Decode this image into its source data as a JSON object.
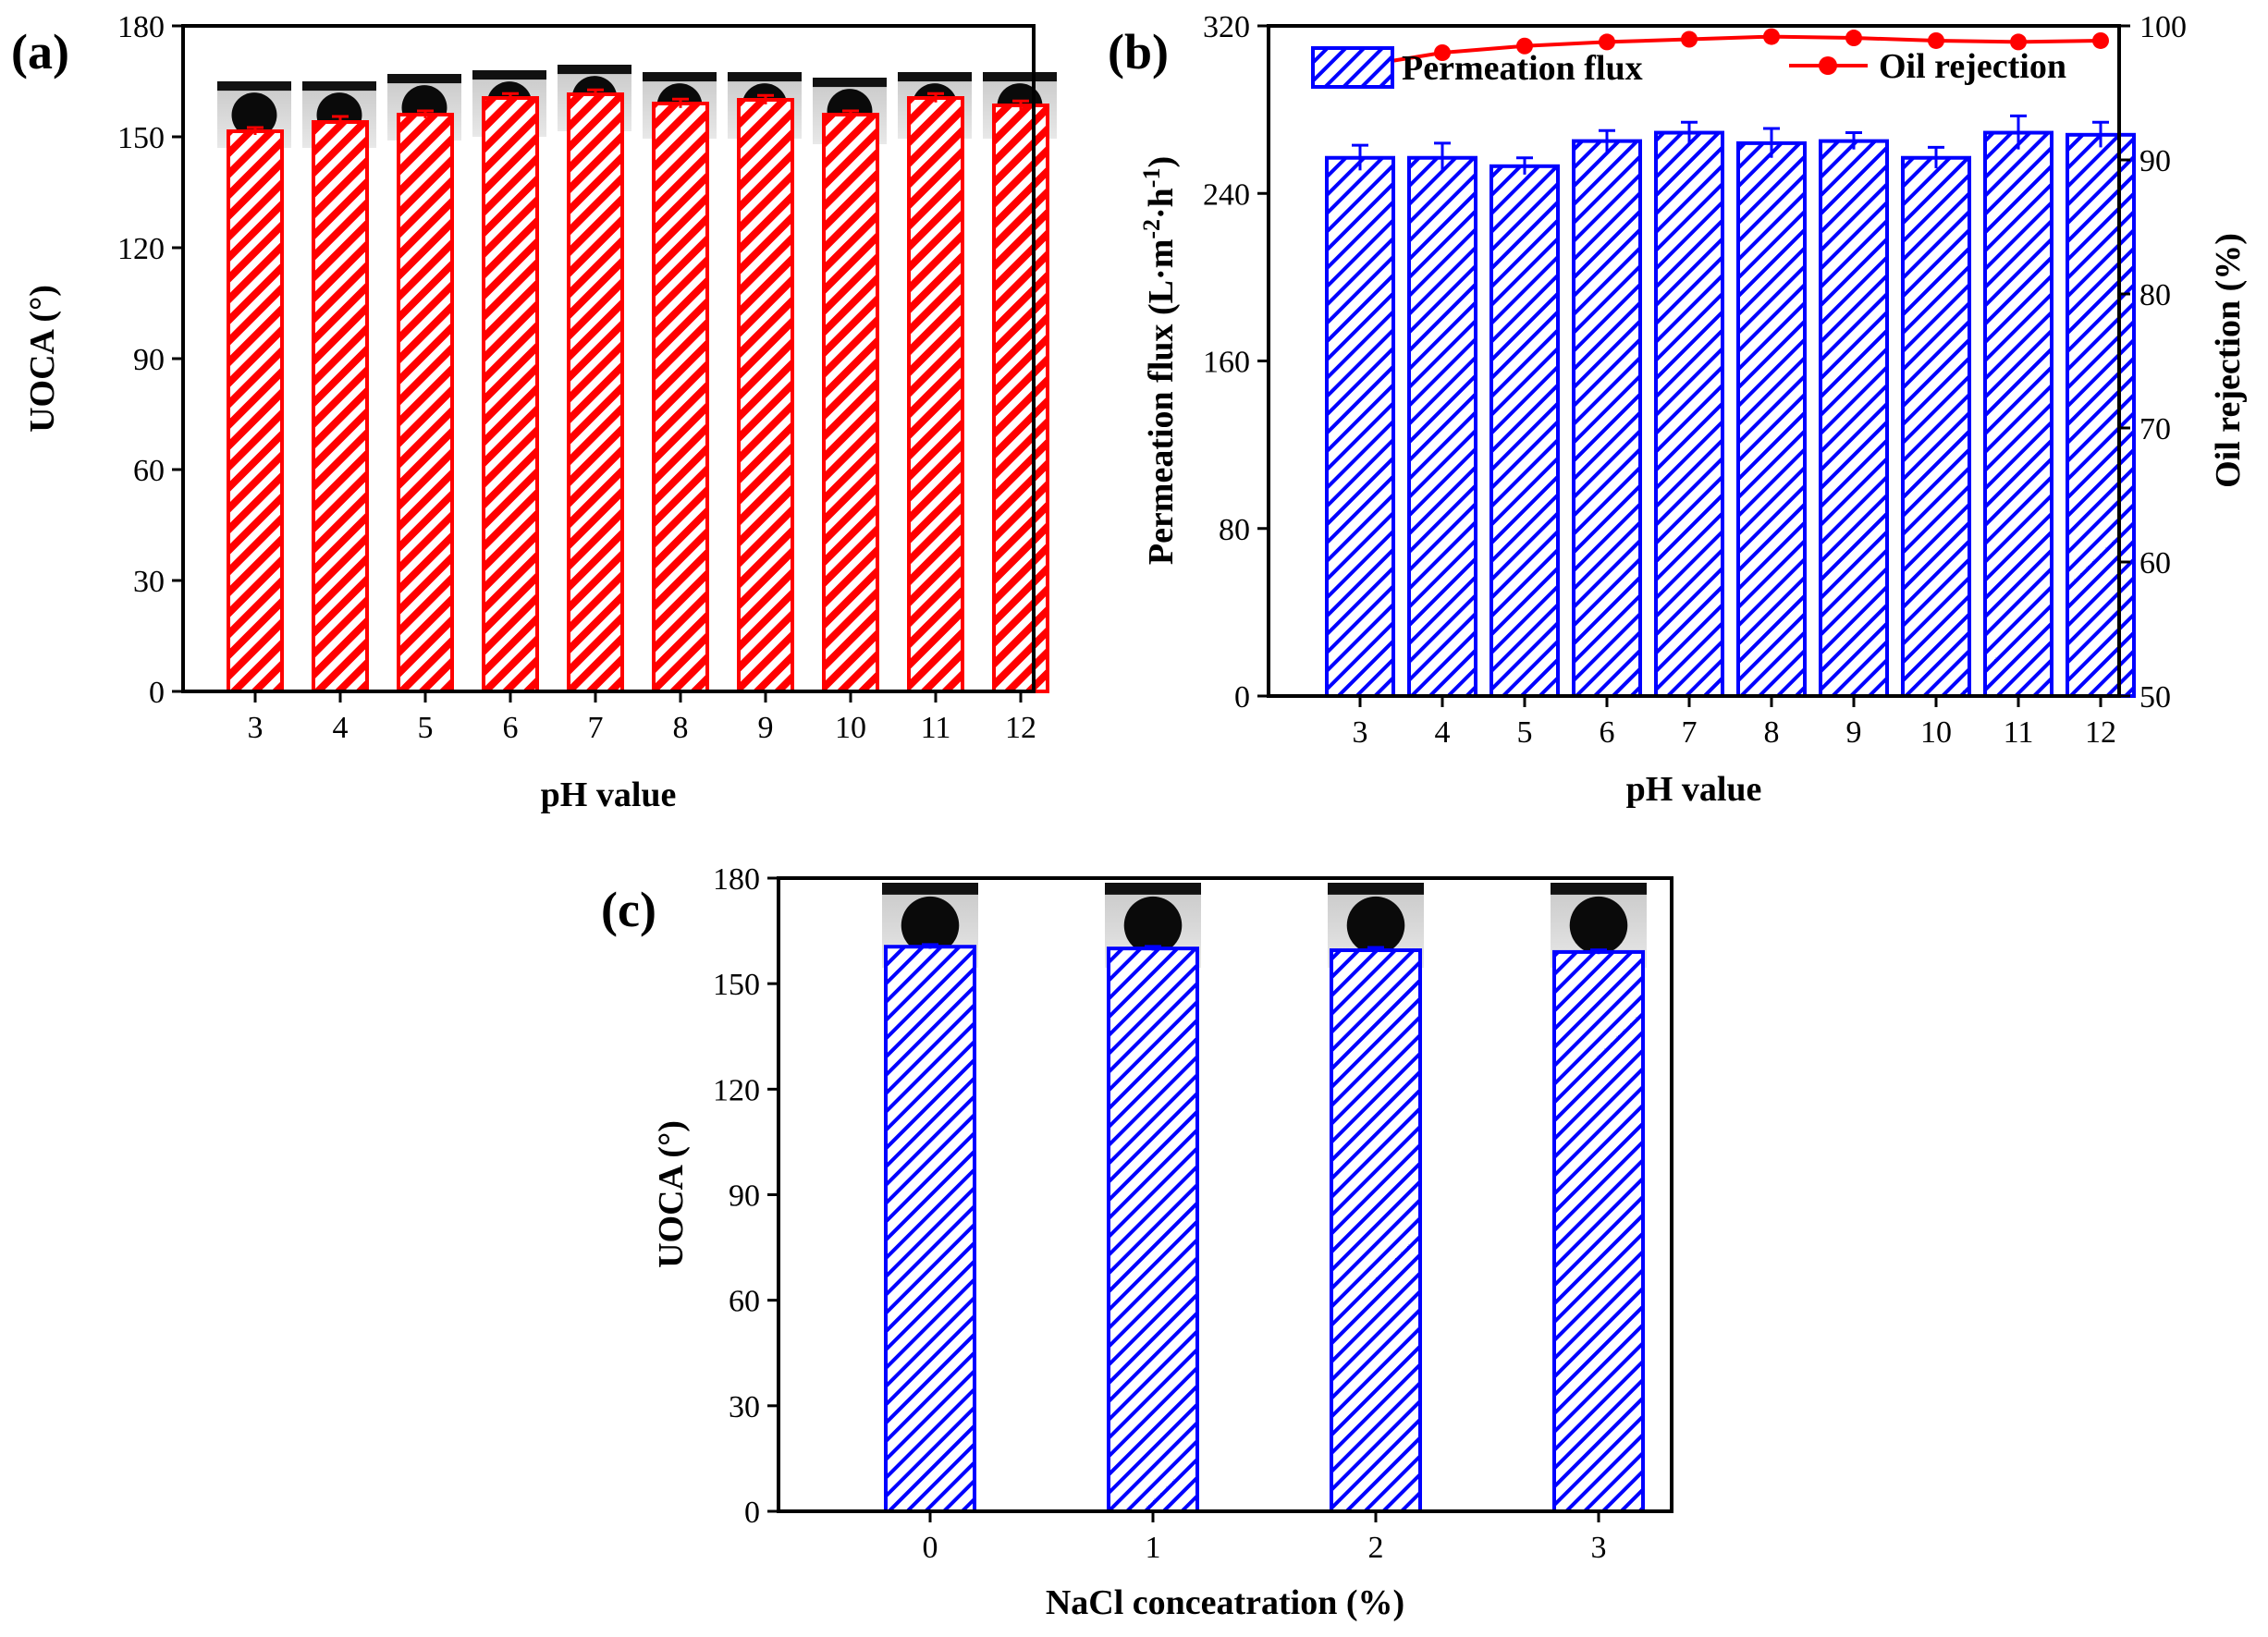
{
  "chart_data": [
    {
      "panel": "(a)",
      "type": "bar",
      "xlabel": "pH value",
      "ylabel": "UOCA (°)",
      "categories": [
        "3",
        "4",
        "5",
        "6",
        "7",
        "8",
        "9",
        "10",
        "11",
        "12"
      ],
      "values": [
        151.5,
        154,
        156,
        160.5,
        161.5,
        159,
        160,
        156,
        160.5,
        158.5
      ],
      "errors": [
        1.0,
        1.5,
        1.0,
        1.2,
        1.2,
        1.2,
        1.2,
        1.0,
        1.2,
        1.2
      ],
      "ylim": [
        0,
        180
      ],
      "yticks": [
        "0",
        "30",
        "60",
        "90",
        "120",
        "150",
        "180"
      ],
      "color": "#ff0000",
      "fill": "hatched",
      "insets": "water-contact-angle droplet photos above each bar"
    },
    {
      "panel": "(b)",
      "type": "bar",
      "xlabel": "pH value",
      "ylabel": "Permeation flux (L·m⁻²·h⁻¹)",
      "y2label": "Oil rejection (%)",
      "categories": [
        "3",
        "4",
        "5",
        "6",
        "7",
        "8",
        "9",
        "10",
        "11",
        "12"
      ],
      "series": [
        {
          "name": "Permeation flux",
          "type": "bar",
          "axis": "left",
          "values": [
            257,
            257,
            253,
            265,
            269,
            264,
            265,
            257,
            269,
            268
          ],
          "errors": [
            6,
            7,
            4,
            5,
            5,
            7,
            4,
            5,
            8,
            6
          ],
          "color": "#0000ff"
        },
        {
          "name": "Oil rejection",
          "type": "line",
          "axis": "right",
          "values": [
            97.0,
            98.0,
            98.5,
            98.8,
            99.0,
            99.2,
            99.1,
            98.9,
            98.8,
            98.9
          ],
          "color": "#ff0000"
        }
      ],
      "ylim": [
        0,
        320
      ],
      "yticks": [
        "0",
        "80",
        "160",
        "240",
        "320"
      ],
      "y2lim": [
        50,
        100
      ],
      "y2ticks": [
        "50",
        "60",
        "70",
        "80",
        "90",
        "100"
      ],
      "legend_position": "top"
    },
    {
      "panel": "(c)",
      "type": "bar",
      "xlabel": "NaCl conceatration (%)",
      "ylabel": "UOCA (°)",
      "categories": [
        "0",
        "1",
        "2",
        "3"
      ],
      "values": [
        160.5,
        160,
        159.5,
        159
      ],
      "errors": [
        0.6,
        0.6,
        0.8,
        0.6
      ],
      "ylim": [
        0,
        180
      ],
      "yticks": [
        "0",
        "30",
        "60",
        "90",
        "120",
        "150",
        "180"
      ],
      "color": "#0000ff",
      "fill": "hatched",
      "insets": "water-contact-angle droplet photos above each bar"
    }
  ]
}
